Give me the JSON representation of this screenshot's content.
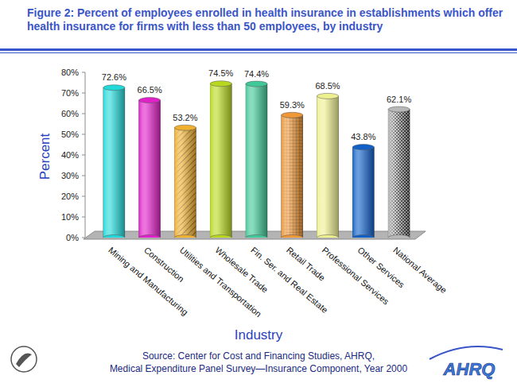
{
  "chart_data": {
    "type": "bar",
    "title": "Figure 2: Percent of employees enrolled in  health insurance in establishments which offer health insurance for firms with less than 50 employees, by industry",
    "x_label": "Industry",
    "y_label": "Percent",
    "categories": [
      "Mining and Manufacturing",
      "Construction",
      "Utilities and Transportation",
      "Wholesale Trade",
      "Fin. Ser. and Real Estate",
      "Retail Trade",
      "Professional Services",
      "Other Services",
      "National Average"
    ],
    "values": [
      72.6,
      66.5,
      53.2,
      74.5,
      74.4,
      59.3,
      68.5,
      43.8,
      62.1
    ],
    "value_labels": [
      "72.6%",
      "66.5%",
      "53.2%",
      "74.5%",
      "74.4%",
      "59.3%",
      "68.5%",
      "43.8%",
      "62.1%"
    ],
    "colors": [
      "#22d8d8",
      "#e020c8",
      "#f0b030",
      "#b8d820",
      "#40c898",
      "#f09838",
      "#eef090",
      "#1060c8",
      "#b8b8b8"
    ],
    "ylim": [
      0,
      80
    ],
    "yticks": [
      {
        "value": 0,
        "label": "0%"
      },
      {
        "value": 10,
        "label": "10%"
      },
      {
        "value": 20,
        "label": "20%"
      },
      {
        "value": 30,
        "label": "30%"
      },
      {
        "value": 40,
        "label": "40%"
      },
      {
        "value": 50,
        "label": "50%"
      },
      {
        "value": 60,
        "label": "60%"
      },
      {
        "value": 70,
        "label": "70%"
      },
      {
        "value": 80,
        "label": "80%"
      }
    ],
    "grid": false,
    "data_labels": true,
    "annotations": [
      "Source: Center for Cost and Financing Studies, AHRQ,",
      "Medical Expenditure Panel Survey—Insurance Component, Year 2000",
      "AHRQ"
    ]
  }
}
